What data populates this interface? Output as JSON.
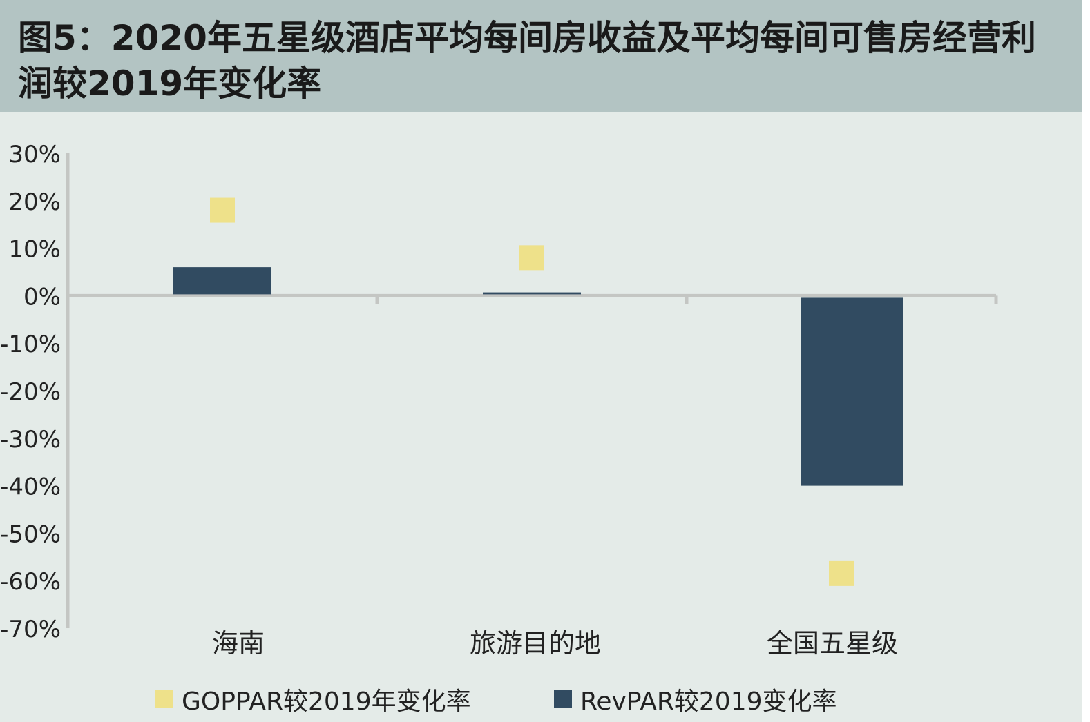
{
  "title": "图5：2020年五星级酒店平均每间房收益及平均每间可售房经营利润较2019年变化率",
  "colors": {
    "goppar": "#eee18a",
    "revpar": "#314b61",
    "axis": "#c4c6c3",
    "text": "#222222"
  },
  "chart_data": {
    "type": "bar",
    "categories": [
      "海南",
      "旅游目的地",
      "全国五星级"
    ],
    "ylim": [
      -70,
      30
    ],
    "yticks": [
      "30%",
      "20%",
      "10%",
      "0%",
      "-10%",
      "-20%",
      "-30%",
      "-40%",
      "-50%",
      "-60%",
      "-70%"
    ],
    "ytick_values": [
      30,
      20,
      10,
      0,
      -10,
      -20,
      -30,
      -40,
      -50,
      -60,
      -70
    ],
    "legend_position": "bottom",
    "series": [
      {
        "name": "GOPPAR较2019年变化率",
        "mark": "square-marker",
        "values": [
          18,
          8,
          -58.5
        ]
      },
      {
        "name": "RevPAR较2019变化率",
        "mark": "bar",
        "values": [
          6,
          0.7,
          -40
        ]
      }
    ]
  }
}
